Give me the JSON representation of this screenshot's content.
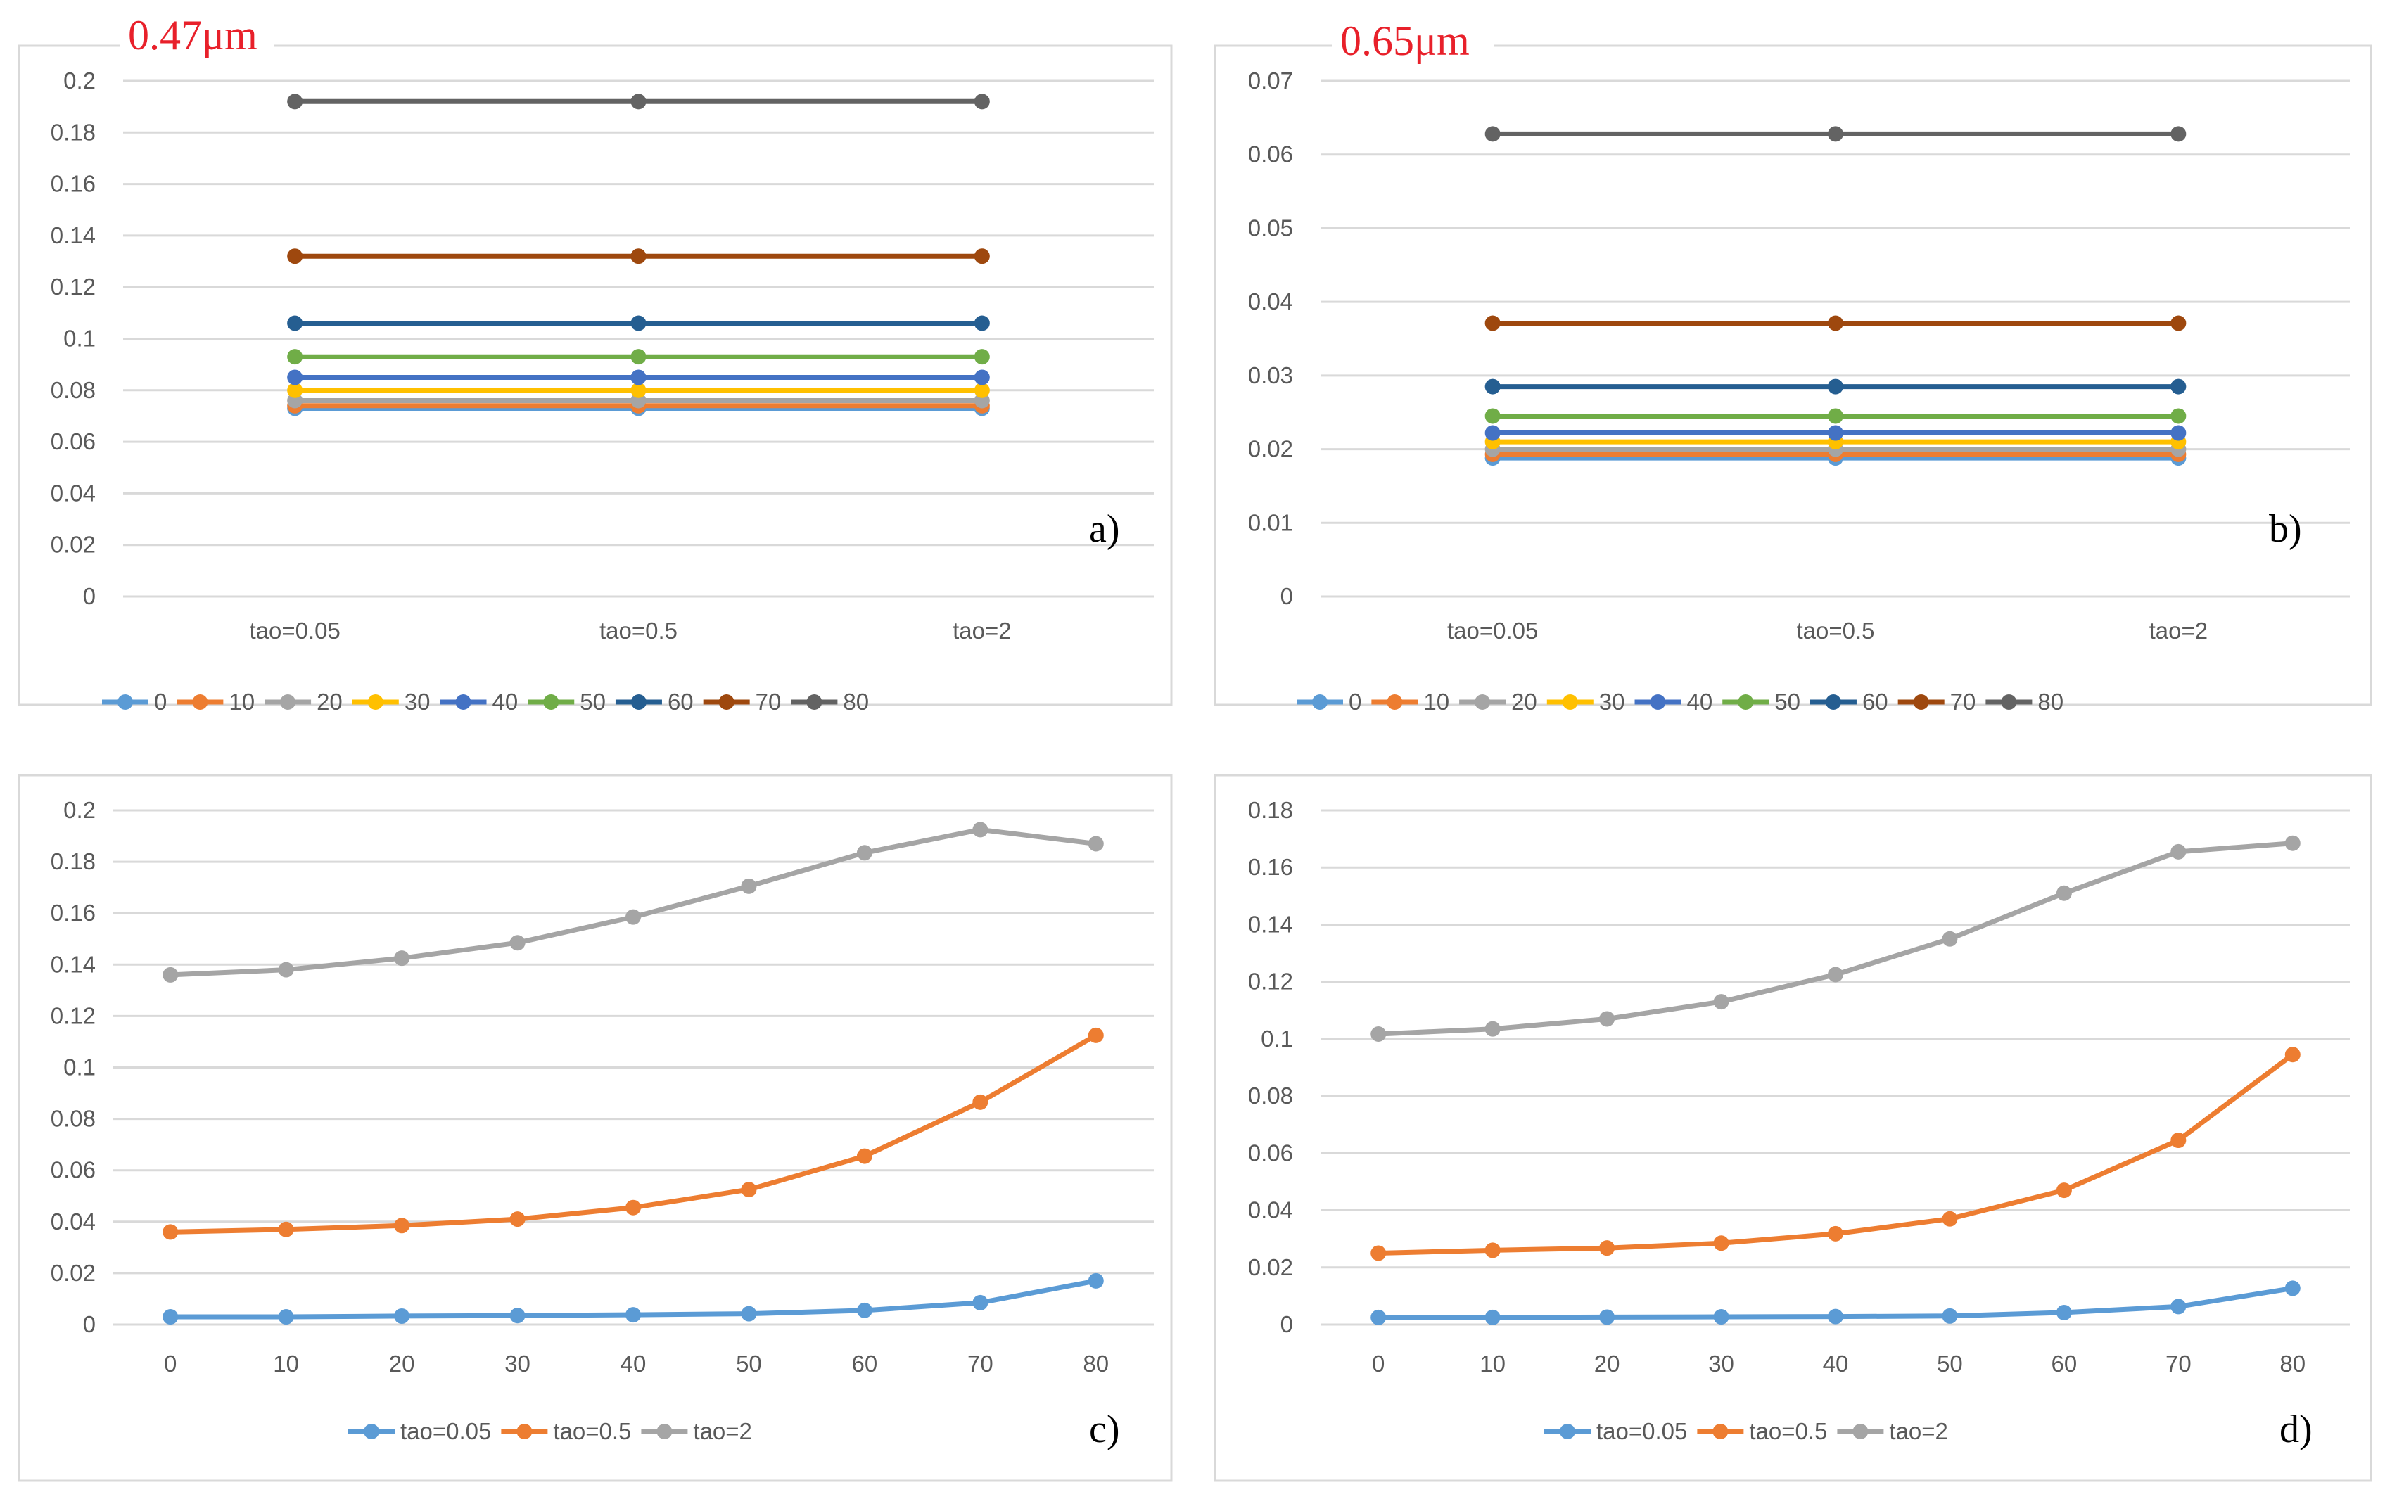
{
  "chart_data": [
    {
      "id": "a",
      "type": "line",
      "title": "0.47μm",
      "panel_label": "a)",
      "categories": [
        "tao=0.05",
        "tao=0.5",
        "tao=2"
      ],
      "ylim": [
        0,
        0.2
      ],
      "yticks": [
        "0",
        "0.02",
        "0.04",
        "0.06",
        "0.08",
        "0.1",
        "0.12",
        "0.14",
        "0.16",
        "0.18",
        "0.2"
      ],
      "legend_position": "bottom",
      "grid": true,
      "series": [
        {
          "name": "0",
          "color": "#5b9bd5",
          "values": [
            0.073,
            0.073,
            0.073
          ]
        },
        {
          "name": "10",
          "color": "#ed7d31",
          "values": [
            0.074,
            0.074,
            0.074
          ]
        },
        {
          "name": "20",
          "color": "#a5a5a5",
          "values": [
            0.076,
            0.076,
            0.076
          ]
        },
        {
          "name": "30",
          "color": "#ffc000",
          "values": [
            0.08,
            0.08,
            0.08
          ]
        },
        {
          "name": "40",
          "color": "#4472c4",
          "values": [
            0.085,
            0.085,
            0.085
          ]
        },
        {
          "name": "50",
          "color": "#70ad47",
          "values": [
            0.093,
            0.093,
            0.093
          ]
        },
        {
          "name": "60",
          "color": "#255e91",
          "values": [
            0.106,
            0.106,
            0.106
          ]
        },
        {
          "name": "70",
          "color": "#9e480e",
          "values": [
            0.132,
            0.132,
            0.132
          ]
        },
        {
          "name": "80",
          "color": "#636363",
          "values": [
            0.192,
            0.192,
            0.192
          ]
        }
      ]
    },
    {
      "id": "b",
      "type": "line",
      "title": "0.65μm",
      "panel_label": "b)",
      "categories": [
        "tao=0.05",
        "tao=0.5",
        "tao=2"
      ],
      "ylim": [
        0,
        0.07
      ],
      "yticks": [
        "0",
        "0.01",
        "0.02",
        "0.03",
        "0.04",
        "0.05",
        "0.06",
        "0.07"
      ],
      "legend_position": "bottom",
      "grid": true,
      "series": [
        {
          "name": "0",
          "color": "#5b9bd5",
          "values": [
            0.0188,
            0.0188,
            0.0188
          ]
        },
        {
          "name": "10",
          "color": "#ed7d31",
          "values": [
            0.0193,
            0.0193,
            0.0193
          ]
        },
        {
          "name": "20",
          "color": "#a5a5a5",
          "values": [
            0.02,
            0.02,
            0.02
          ]
        },
        {
          "name": "30",
          "color": "#ffc000",
          "values": [
            0.021,
            0.021,
            0.021
          ]
        },
        {
          "name": "40",
          "color": "#4472c4",
          "values": [
            0.0222,
            0.0222,
            0.0222
          ]
        },
        {
          "name": "50",
          "color": "#70ad47",
          "values": [
            0.0245,
            0.0245,
            0.0245
          ]
        },
        {
          "name": "60",
          "color": "#255e91",
          "values": [
            0.0285,
            0.0285,
            0.0285
          ]
        },
        {
          "name": "70",
          "color": "#9e480e",
          "values": [
            0.0371,
            0.0371,
            0.0371
          ]
        },
        {
          "name": "80",
          "color": "#636363",
          "values": [
            0.0628,
            0.0628,
            0.0628
          ]
        }
      ]
    },
    {
      "id": "c",
      "type": "line",
      "title": "",
      "panel_label": "c)",
      "categories": [
        "0",
        "10",
        "20",
        "30",
        "40",
        "50",
        "60",
        "70",
        "80"
      ],
      "ylim": [
        0,
        0.2
      ],
      "yticks": [
        "0",
        "0.02",
        "0.04",
        "0.06",
        "0.08",
        "0.1",
        "0.12",
        "0.14",
        "0.16",
        "0.18",
        "0.2"
      ],
      "legend_position": "bottom",
      "grid": true,
      "series": [
        {
          "name": "tao=0.05",
          "color": "#5b9bd5",
          "values": [
            0.003,
            0.003,
            0.0033,
            0.0035,
            0.0038,
            0.0042,
            0.0055,
            0.0085,
            0.017
          ]
        },
        {
          "name": "tao=0.5",
          "color": "#ed7d31",
          "values": [
            0.036,
            0.037,
            0.0385,
            0.041,
            0.0455,
            0.0525,
            0.0655,
            0.0865,
            0.1125
          ]
        },
        {
          "name": "tao=2",
          "color": "#a5a5a5",
          "values": [
            0.136,
            0.138,
            0.1425,
            0.1485,
            0.1585,
            0.1705,
            0.1835,
            0.1925,
            0.187
          ]
        }
      ]
    },
    {
      "id": "d",
      "type": "line",
      "title": "",
      "panel_label": "d)",
      "categories": [
        "0",
        "10",
        "20",
        "30",
        "40",
        "50",
        "60",
        "70",
        "80"
      ],
      "ylim": [
        0,
        0.18
      ],
      "yticks": [
        "0",
        "0.02",
        "0.04",
        "0.06",
        "0.08",
        "0.1",
        "0.12",
        "0.14",
        "0.16",
        "0.18"
      ],
      "legend_position": "bottom",
      "grid": true,
      "series": [
        {
          "name": "tao=0.05",
          "color": "#5b9bd5",
          "values": [
            0.0025,
            0.0025,
            0.0026,
            0.0027,
            0.0028,
            0.003,
            0.0042,
            0.0063,
            0.0127
          ]
        },
        {
          "name": "tao=0.5",
          "color": "#ed7d31",
          "values": [
            0.025,
            0.026,
            0.0268,
            0.0285,
            0.0318,
            0.037,
            0.047,
            0.0645,
            0.0945
          ]
        },
        {
          "name": "tao=2",
          "color": "#a5a5a5",
          "values": [
            0.1017,
            0.1035,
            0.107,
            0.113,
            0.1225,
            0.135,
            0.151,
            0.1655,
            0.1685
          ]
        }
      ]
    }
  ]
}
